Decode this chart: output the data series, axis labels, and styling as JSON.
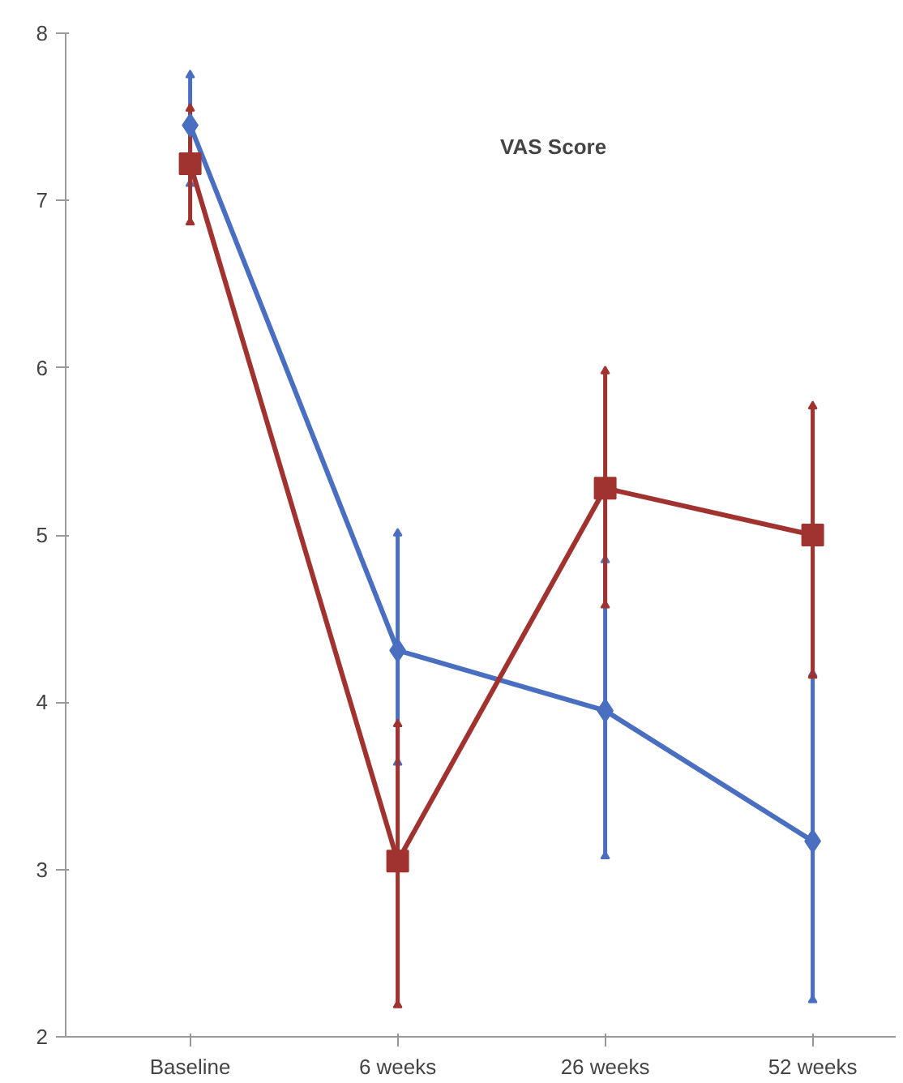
{
  "chart_data": {
    "type": "line",
    "title": "VAS Score",
    "categories": [
      "Baseline",
      "6 weeks",
      "26 weeks",
      "52 weeks"
    ],
    "series": [
      {
        "color": "#4a6fc0",
        "marker": "diamond",
        "values": [
          7.45,
          4.31,
          3.95,
          3.17
        ],
        "errors": [
          [
            7.1,
            7.75
          ],
          [
            3.64,
            5.01
          ],
          [
            3.08,
            4.85
          ],
          [
            2.22,
            4.17
          ]
        ]
      },
      {
        "color": "#a0332f",
        "marker": "square",
        "values": [
          7.22,
          3.05,
          5.28,
          5.0
        ],
        "errors": [
          [
            6.87,
            7.55
          ],
          [
            2.19,
            3.87
          ],
          [
            4.58,
            5.98
          ],
          [
            4.16,
            5.77
          ]
        ]
      }
    ],
    "ylim": [
      2,
      8
    ],
    "yticks": [
      2,
      3,
      4,
      5,
      6,
      7,
      8
    ],
    "grid": false,
    "line_style": "solid"
  }
}
